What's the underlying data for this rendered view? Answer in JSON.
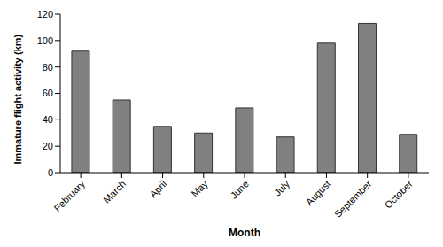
{
  "chart_data": {
    "type": "bar",
    "x_label": "Month",
    "y_label": "Immature flight activity (km)",
    "categories": [
      "February",
      "March",
      "April",
      "May",
      "June",
      "July",
      "August",
      "September",
      "October"
    ],
    "values": [
      92,
      55,
      35,
      30,
      49,
      27,
      98,
      113,
      29
    ],
    "color": "#808080",
    "ylim": [
      0,
      120
    ],
    "yticks": [
      0,
      20,
      40,
      60,
      80,
      100,
      120
    ],
    "grid": false
  }
}
